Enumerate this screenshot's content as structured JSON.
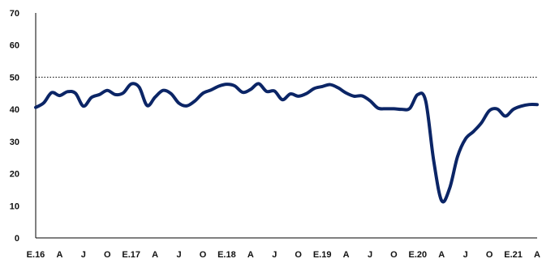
{
  "chart_data": {
    "type": "line",
    "title": "",
    "xlabel": "",
    "ylabel": "",
    "ylim": [
      0,
      70
    ],
    "yticks": [
      0,
      10,
      20,
      30,
      40,
      50,
      60,
      70
    ],
    "reference_line": {
      "value": 50,
      "style": "dotted"
    },
    "grid": false,
    "legend": "none",
    "x_tick_labels": [
      "E.16",
      "A",
      "J",
      "O",
      "E.17",
      "A",
      "J",
      "O",
      "E.18",
      "A",
      "J",
      "O",
      "E.19",
      "A",
      "J",
      "O",
      "E.20",
      "A",
      "J",
      "O",
      "E.21",
      "A"
    ],
    "x_months": [
      "2016-01",
      "2016-02",
      "2016-03",
      "2016-04",
      "2016-05",
      "2016-06",
      "2016-07",
      "2016-08",
      "2016-09",
      "2016-10",
      "2016-11",
      "2016-12",
      "2017-01",
      "2017-02",
      "2017-03",
      "2017-04",
      "2017-05",
      "2017-06",
      "2017-07",
      "2017-08",
      "2017-09",
      "2017-10",
      "2017-11",
      "2017-12",
      "2018-01",
      "2018-02",
      "2018-03",
      "2018-04",
      "2018-05",
      "2018-06",
      "2018-07",
      "2018-08",
      "2018-09",
      "2018-10",
      "2018-11",
      "2018-12",
      "2019-01",
      "2019-02",
      "2019-03",
      "2019-04",
      "2019-05",
      "2019-06",
      "2019-07",
      "2019-08",
      "2019-09",
      "2019-10",
      "2019-11",
      "2019-12",
      "2020-01",
      "2020-02",
      "2020-03",
      "2020-04",
      "2020-05",
      "2020-06",
      "2020-07",
      "2020-08",
      "2020-09",
      "2020-10",
      "2020-11",
      "2020-12",
      "2021-01",
      "2021-02",
      "2021-03",
      "2021-04"
    ],
    "series": [
      {
        "name": "",
        "color": "#0b2566",
        "values": [
          40.6,
          42.0,
          45.2,
          44.3,
          45.5,
          45.0,
          41.0,
          43.7,
          44.6,
          45.9,
          44.6,
          45.1,
          47.9,
          46.9,
          41.2,
          43.8,
          45.9,
          44.9,
          41.9,
          41.1,
          42.6,
          45.0,
          46.0,
          47.2,
          47.8,
          47.3,
          45.3,
          46.2,
          48.0,
          45.6,
          45.7,
          43.0,
          44.8,
          44.1,
          44.9,
          46.5,
          47.1,
          47.7,
          46.7,
          45.1,
          44.1,
          44.2,
          42.7,
          40.4,
          40.2,
          40.2,
          40.0,
          40.3,
          44.6,
          42.6,
          24.1,
          11.6,
          15.4,
          25.3,
          30.8,
          33.1,
          35.8,
          39.6,
          40.1,
          37.9,
          40.0,
          41.0,
          41.5,
          41.5
        ]
      }
    ]
  }
}
